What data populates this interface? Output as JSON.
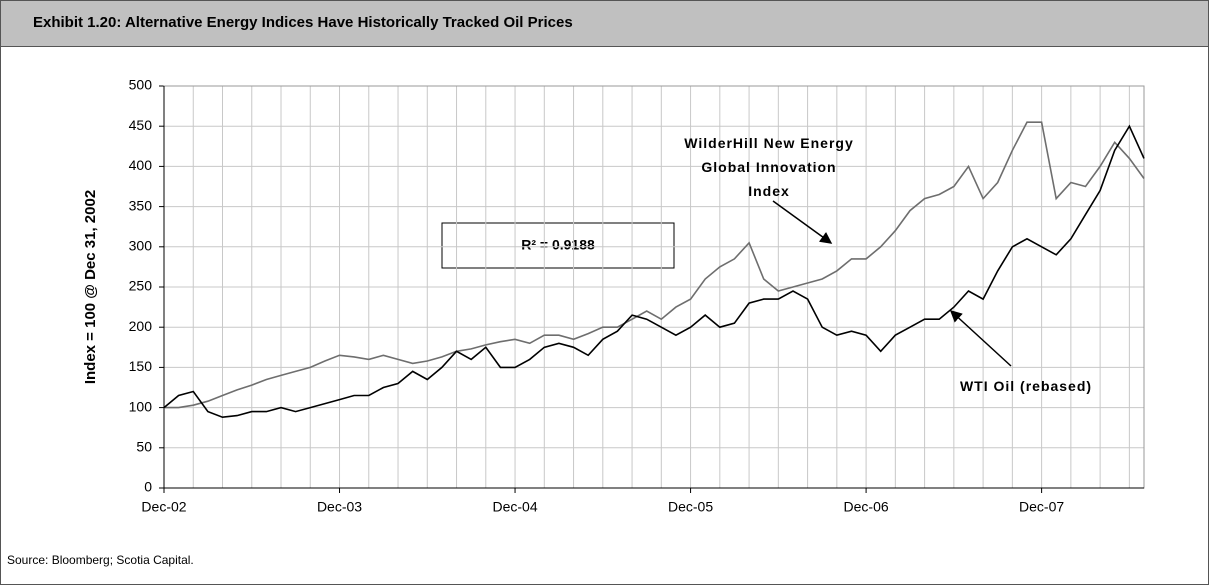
{
  "chart_data": {
    "type": "line",
    "title": "Exhibit 1.20: Alternative Energy Indices Have Historically Tracked Oil Prices",
    "ylabel": "Index = 100 @ Dec 31, 2002",
    "source": "Source: Bloomberg; Scotia Capital.",
    "annotations": [
      "WilderHill New Energy Global Innovation Index",
      "WTI Oil (rebased)",
      "R² = 0.9188"
    ],
    "x": [
      "Dec-02",
      "Jan-03",
      "Feb-03",
      "Mar-03",
      "Apr-03",
      "May-03",
      "Jun-03",
      "Jul-03",
      "Aug-03",
      "Sep-03",
      "Oct-03",
      "Nov-03",
      "Dec-03",
      "Jan-04",
      "Feb-04",
      "Mar-04",
      "Apr-04",
      "May-04",
      "Jun-04",
      "Jul-04",
      "Aug-04",
      "Sep-04",
      "Oct-04",
      "Nov-04",
      "Dec-04",
      "Jan-05",
      "Feb-05",
      "Mar-05",
      "Apr-05",
      "May-05",
      "Jun-05",
      "Jul-05",
      "Aug-05",
      "Sep-05",
      "Oct-05",
      "Nov-05",
      "Dec-05",
      "Jan-06",
      "Feb-06",
      "Mar-06",
      "Apr-06",
      "May-06",
      "Jun-06",
      "Jul-06",
      "Aug-06",
      "Sep-06",
      "Oct-06",
      "Nov-06",
      "Dec-06",
      "Jan-07",
      "Feb-07",
      "Mar-07",
      "Apr-07",
      "May-07",
      "Jun-07",
      "Jul-07",
      "Aug-07",
      "Sep-07",
      "Oct-07",
      "Nov-07",
      "Dec-07",
      "Jan-08",
      "Feb-08",
      "Mar-08",
      "Apr-08",
      "May-08",
      "Jun-08",
      "Jul-08"
    ],
    "xticks": [
      "Dec-02",
      "Dec-03",
      "Dec-04",
      "Dec-05",
      "Dec-06",
      "Dec-07"
    ],
    "series": [
      {
        "name": "WilderHill New Energy Global Innovation Index",
        "color": "#6e6e6e",
        "values": [
          100,
          100,
          103,
          108,
          115,
          122,
          128,
          135,
          140,
          145,
          150,
          158,
          165,
          163,
          160,
          165,
          160,
          155,
          158,
          163,
          170,
          173,
          178,
          182,
          185,
          180,
          190,
          190,
          185,
          192,
          200,
          200,
          210,
          220,
          210,
          225,
          235,
          260,
          275,
          285,
          305,
          260,
          245,
          250,
          255,
          260,
          270,
          285,
          285,
          300,
          320,
          345,
          360,
          365,
          375,
          400,
          360,
          380,
          420,
          455,
          455,
          360,
          380,
          375,
          400,
          430,
          410,
          385
        ]
      },
      {
        "name": "WTI Oil (rebased)",
        "color": "#000000",
        "values": [
          100,
          115,
          120,
          95,
          88,
          90,
          95,
          95,
          100,
          95,
          100,
          105,
          110,
          115,
          115,
          125,
          130,
          145,
          135,
          150,
          170,
          160,
          175,
          150,
          150,
          160,
          175,
          180,
          175,
          165,
          185,
          195,
          215,
          210,
          200,
          190,
          200,
          215,
          200,
          205,
          230,
          235,
          235,
          245,
          235,
          200,
          190,
          195,
          190,
          170,
          190,
          200,
          210,
          210,
          225,
          245,
          235,
          270,
          300,
          310,
          300,
          290,
          310,
          340,
          370,
          420,
          450,
          410
        ]
      }
    ],
    "ylim": [
      0,
      500
    ],
    "yticks": [
      0,
      50,
      100,
      150,
      200,
      250,
      300,
      350,
      400,
      450,
      500
    ],
    "grid": true
  }
}
